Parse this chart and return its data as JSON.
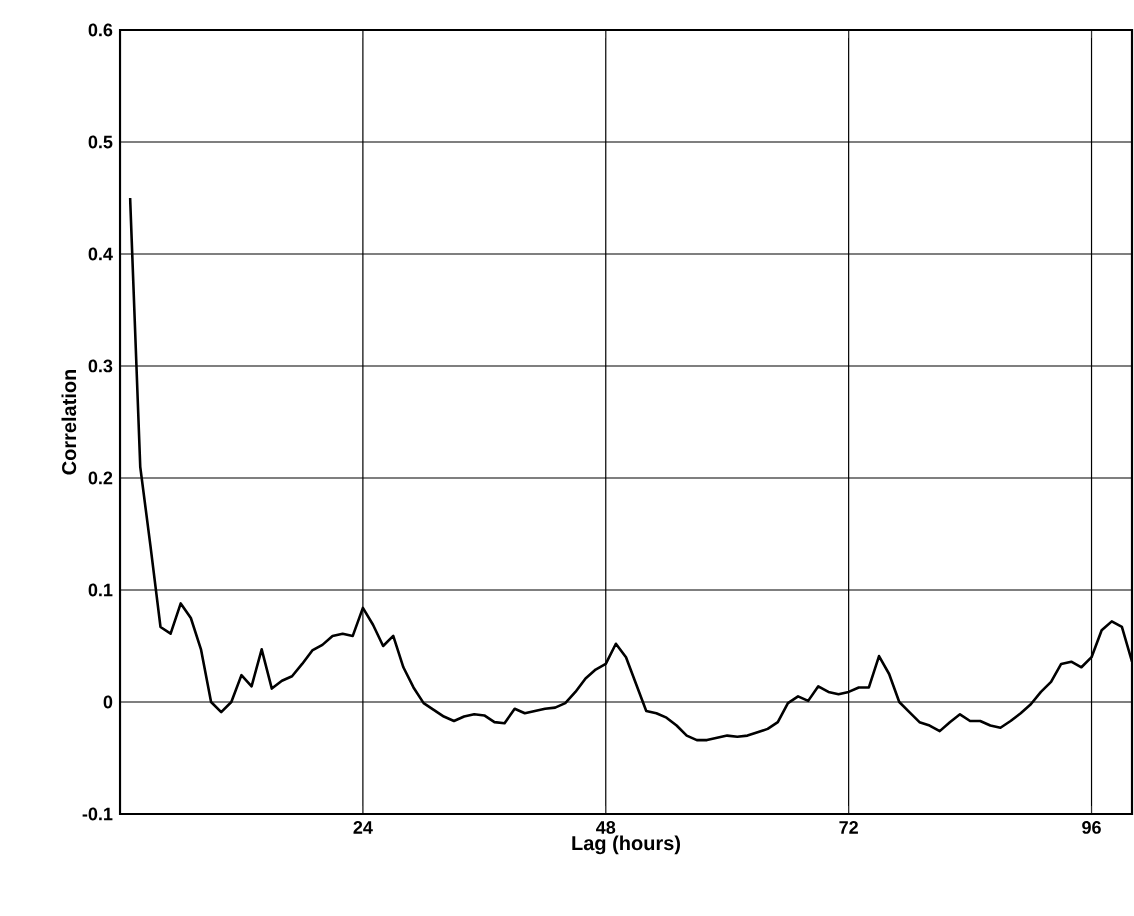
{
  "chart_data": {
    "type": "line",
    "xlabel": "Lag (hours)",
    "ylabel": "Correlation",
    "x": [
      1,
      2,
      3,
      4,
      5,
      6,
      7,
      8,
      9,
      10,
      11,
      12,
      13,
      14,
      15,
      16,
      17,
      18,
      19,
      20,
      21,
      22,
      23,
      24,
      25,
      26,
      27,
      28,
      29,
      30,
      31,
      32,
      33,
      34,
      35,
      36,
      37,
      38,
      39,
      40,
      41,
      42,
      43,
      44,
      45,
      46,
      47,
      48,
      49,
      50,
      51,
      52,
      53,
      54,
      55,
      56,
      57,
      58,
      59,
      60,
      61,
      62,
      63,
      64,
      65,
      66,
      67,
      68,
      69,
      70,
      71,
      72,
      73,
      74,
      75,
      76,
      77,
      78,
      79,
      80,
      81,
      82,
      83,
      84,
      85,
      86,
      87,
      88,
      89,
      90,
      91,
      92,
      93,
      94,
      95,
      96,
      97,
      98,
      99,
      100
    ],
    "series": [
      {
        "color": "#000000",
        "values": [
          0.45,
          0.21,
          0.14,
          0.067,
          0.061,
          0.088,
          0.075,
          0.047,
          0.0,
          -0.009,
          0.0,
          0.024,
          0.014,
          0.047,
          0.012,
          0.019,
          0.023,
          0.034,
          0.046,
          0.051,
          0.059,
          0.061,
          0.059,
          0.084,
          0.069,
          0.05,
          0.059,
          0.031,
          0.013,
          -0.001,
          -0.007,
          -0.013,
          -0.017,
          -0.013,
          -0.011,
          -0.012,
          -0.018,
          -0.019,
          -0.006,
          -0.01,
          -0.008,
          -0.006,
          -0.005,
          -0.001,
          0.009,
          0.021,
          0.029,
          0.034,
          0.052,
          0.04,
          0.016,
          -0.008,
          -0.01,
          -0.014,
          -0.021,
          -0.03,
          -0.034,
          -0.034,
          -0.032,
          -0.03,
          -0.031,
          -0.03,
          -0.027,
          -0.024,
          -0.018,
          -0.001,
          0.005,
          0.001,
          0.014,
          0.009,
          0.007,
          0.009,
          0.013,
          0.013,
          0.041,
          0.025,
          0.0,
          -0.009,
          -0.018,
          -0.021,
          -0.026,
          -0.018,
          -0.011,
          -0.017,
          -0.017,
          -0.021,
          -0.023,
          -0.017,
          -0.01,
          -0.002,
          0.009,
          0.018,
          0.034,
          0.036,
          0.031,
          0.04,
          0.064,
          0.072,
          0.067,
          0.036
        ]
      }
    ],
    "xlim": [
      0,
      100
    ],
    "ylim": [
      -0.1,
      0.6
    ],
    "xticks": [
      24,
      48,
      72,
      96
    ],
    "yticks": [
      -0.1,
      0,
      0.1,
      0.2,
      0.3,
      0.4,
      0.5,
      0.6
    ],
    "grid": true,
    "marker": "none",
    "line_style": "solid"
  }
}
